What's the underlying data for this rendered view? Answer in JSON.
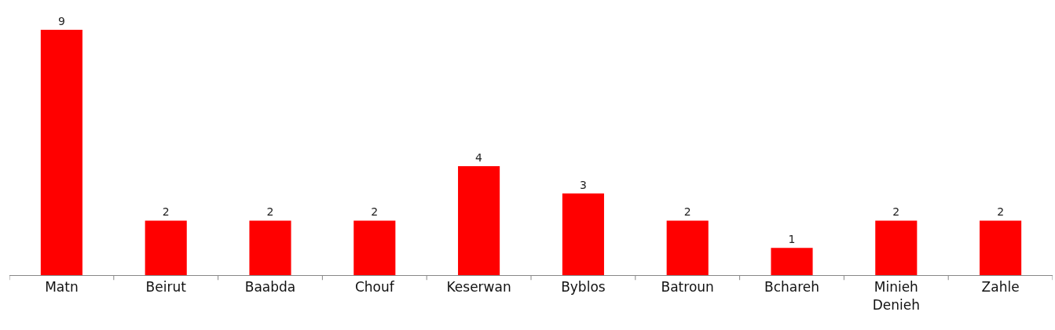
{
  "chart_data": {
    "type": "bar",
    "categories": [
      "Matn",
      "Beirut",
      "Baabda",
      "Chouf",
      "Keserwan",
      "Byblos",
      "Batroun",
      "Bchareh",
      "Minieh Denieh",
      "Zahle"
    ],
    "values": [
      9,
      2,
      2,
      2,
      4,
      3,
      2,
      1,
      2,
      2
    ],
    "color": "#ff0000",
    "data_labels": true
  }
}
